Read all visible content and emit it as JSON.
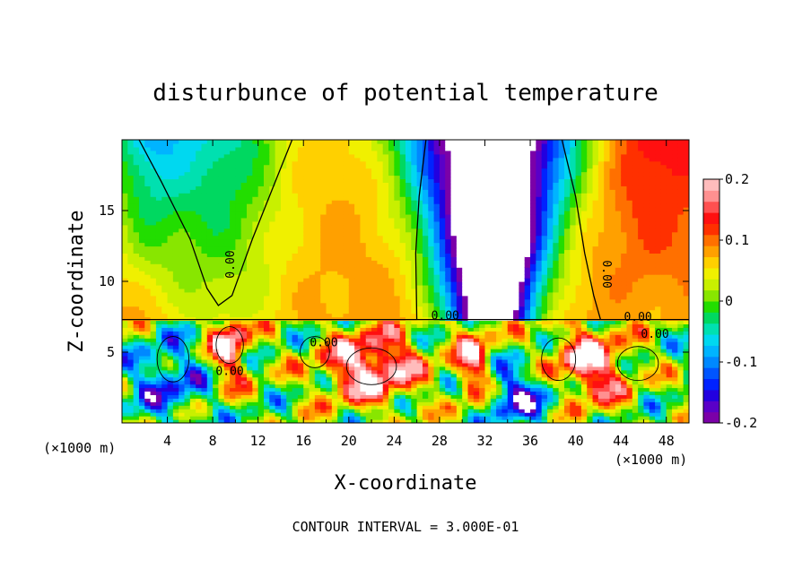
{
  "chart_data": {
    "type": "heatmap",
    "title": "disturbunce of potential temperature",
    "xlabel": "X-coordinate",
    "ylabel": "Z-coordinate",
    "x_unit": "(×1000 m)",
    "z_unit": "(×1000 m)",
    "xlim": [
      0,
      50
    ],
    "ylim": [
      0,
      20
    ],
    "x_ticks": [
      4,
      8,
      12,
      16,
      20,
      24,
      28,
      32,
      36,
      40,
      44,
      48
    ],
    "y_ticks": [
      5,
      10,
      15
    ],
    "colorbar": {
      "range": [
        -0.2,
        0.2
      ],
      "tick_values": [
        0.2,
        0.1,
        0,
        -0.1,
        -0.2
      ],
      "tick_labels": [
        "0.2",
        "0.1",
        "0",
        "-0.1",
        "-0.2"
      ],
      "colors": [
        "#7b00a8",
        "#5a00c8",
        "#2200e0",
        "#0022ff",
        "#0055ff",
        "#0088ff",
        "#00b4ff",
        "#00d8f0",
        "#00e0b0",
        "#00d860",
        "#22dd00",
        "#88e600",
        "#c8f000",
        "#f0f000",
        "#ffd000",
        "#ffa000",
        "#ff7000",
        "#ff3000",
        "#ff1010",
        "#ff5050",
        "#ff9090",
        "#ffbcbc"
      ]
    },
    "contour_interval_label": "CONTOUR INTERVAL = 3.000E-01",
    "contour_labels": [
      "0.00",
      "0.00",
      "0.00",
      "0.00",
      "0.00",
      "0.00"
    ]
  }
}
